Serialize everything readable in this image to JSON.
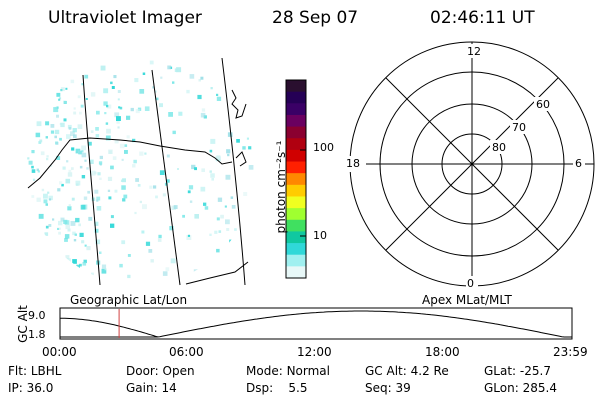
{
  "header": {
    "instrument": "Ultraviolet Imager",
    "date": "28 Sep 07",
    "time": "02:46:11 UT"
  },
  "colorbar": {
    "unit_label": "photon cm⁻²s⁻¹",
    "ticks": [
      "100",
      "10"
    ],
    "tick_values": [
      100,
      10
    ],
    "colors": [
      "#2a0f2f",
      "#250055",
      "#3a0066",
      "#6a0060",
      "#8a0030",
      "#b00010",
      "#d00000",
      "#ff2000",
      "#ff8800",
      "#ffcc00",
      "#f0ff20",
      "#a0ff30",
      "#40e060",
      "#10c8a0",
      "#30d8d8",
      "#a0f0f0",
      "#e8f8f8"
    ]
  },
  "maps": {
    "left_label": "Geographic Lat/Lon",
    "right_label": "Apex MLat/MLT",
    "mlt_labels": {
      "top": "12",
      "left": "18",
      "right": "6",
      "bottom": "0"
    },
    "mlat_labels": [
      "60",
      "70",
      "80"
    ]
  },
  "altitude_plot": {
    "axis_label": "GC Alt",
    "y_ticks": [
      "9.0",
      "1.8"
    ],
    "x_ticks": [
      "00:00",
      "06:00",
      "12:00",
      "18:00",
      "23:59"
    ],
    "current_time_hours": 2.77,
    "marker_color": "#d04040"
  },
  "status": {
    "row1": [
      {
        "key": "Flt:",
        "value": "LBHL"
      },
      {
        "key": "Door:",
        "value": "Open"
      },
      {
        "key": "Mode:",
        "value": "Normal"
      },
      {
        "key": "GC Alt:",
        "value": "4.2 Re"
      },
      {
        "key": "GLat:",
        "value": "-25.7"
      }
    ],
    "row2": [
      {
        "key": "IP:",
        "value": "36.0"
      },
      {
        "key": "Gain:",
        "value": "14"
      },
      {
        "key": "Dsp:",
        "value": "5.5"
      },
      {
        "key": "Seq:",
        "value": "39"
      },
      {
        "key": "GLon:",
        "value": "285.4"
      }
    ]
  }
}
